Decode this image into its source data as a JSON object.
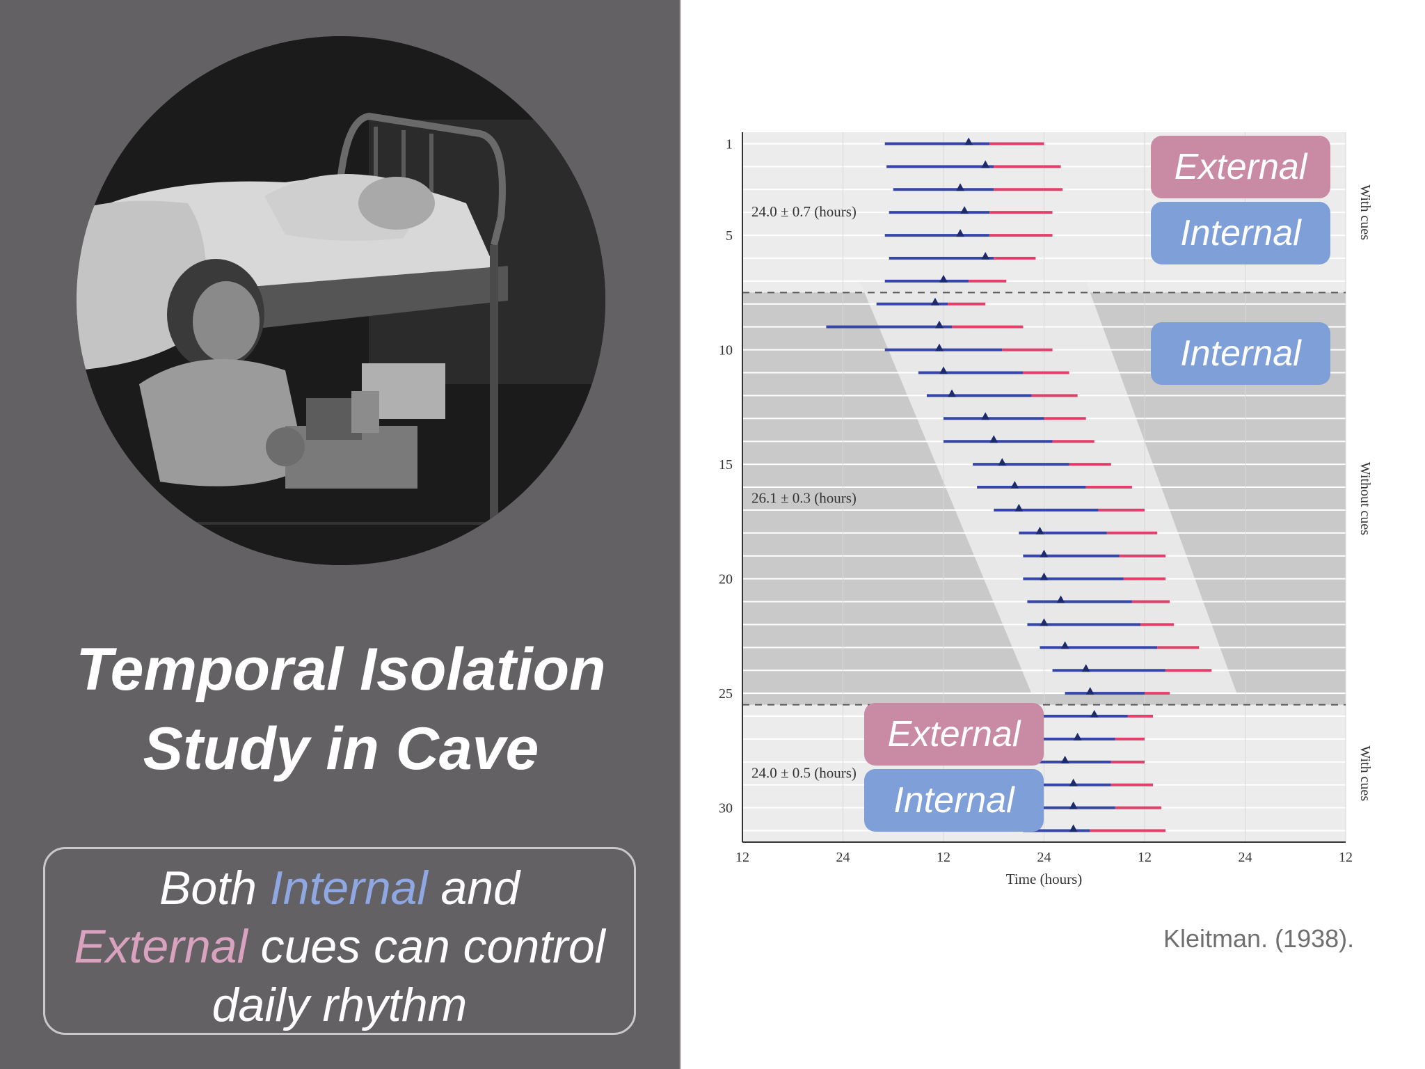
{
  "title": {
    "line1": "Temporal Isolation",
    "line2": "Study in Cave"
  },
  "caption": {
    "w1": "Both",
    "w2": "Internal",
    "w3": "and",
    "w4": "External",
    "w5": "cues can control",
    "w6": "daily rhythm"
  },
  "citation": "Kleitman. (1938).",
  "colors": {
    "internal": "#3546a8",
    "external": "#e0406a",
    "external_label": "#c98aa4",
    "internal_label": "#7f9fd9",
    "panel_bg": "#636164"
  },
  "labels": {
    "external_top": "External",
    "internal_top": "Internal",
    "internal_mid": "Internal",
    "external_bottom": "External",
    "internal_bottom": "Internal"
  },
  "chart_data": {
    "type": "raster",
    "xlabel": "Time (hours)",
    "x_ticks": [
      "12",
      "24",
      "12",
      "24",
      "12",
      "24",
      "12",
      "24"
    ],
    "x_range": [
      12,
      84
    ],
    "y_ticks": [
      1,
      5,
      10,
      15,
      20,
      25,
      30
    ],
    "y_range": [
      1,
      31
    ],
    "grid": true,
    "segments": [
      {
        "label": "With cues",
        "days": [
          1,
          7
        ],
        "period": "24.0 ± 0.7 (hours)"
      },
      {
        "label": "Without cues",
        "days": [
          8,
          25
        ],
        "period": "26.1 ± 0.3 (hours)"
      },
      {
        "label": "With cues",
        "days": [
          26,
          31
        ],
        "period": "24.0 ± 0.5 (hours)"
      }
    ],
    "series": [
      {
        "name": "Internal",
        "color": "#3546a8"
      },
      {
        "name": "External",
        "color": "#e0406a"
      }
    ],
    "days": [
      {
        "day": 1,
        "start": 29.0,
        "switch": 41.5,
        "end": 48.0,
        "marker": 39.0
      },
      {
        "day": 2,
        "start": 29.2,
        "switch": 42.0,
        "end": 50.0,
        "marker": 41.0
      },
      {
        "day": 3,
        "start": 30.0,
        "switch": 42.0,
        "end": 50.2,
        "marker": 38.0
      },
      {
        "day": 4,
        "start": 29.5,
        "switch": 41.5,
        "end": 49.0,
        "marker": 38.5
      },
      {
        "day": 5,
        "start": 29.0,
        "switch": 41.5,
        "end": 49.0,
        "marker": 38.0
      },
      {
        "day": 6,
        "start": 29.5,
        "switch": 42.0,
        "end": 47.0,
        "marker": 41.0
      },
      {
        "day": 7,
        "start": 29.0,
        "switch": 39.0,
        "end": 43.5,
        "marker": 36.0
      },
      {
        "day": 8,
        "start": 28.0,
        "switch": 36.5,
        "end": 41.0,
        "marker": 35.0
      },
      {
        "day": 9,
        "start": 22.0,
        "switch": 37.0,
        "end": 45.5,
        "marker": 35.5
      },
      {
        "day": 10,
        "start": 29.0,
        "switch": 43.0,
        "end": 49.0,
        "marker": 35.5
      },
      {
        "day": 11,
        "start": 33.0,
        "switch": 45.5,
        "end": 51.0,
        "marker": 36.0
      },
      {
        "day": 12,
        "start": 34.0,
        "switch": 46.5,
        "end": 52.0,
        "marker": 37.0
      },
      {
        "day": 13,
        "start": 36.0,
        "switch": 48.0,
        "end": 53.0,
        "marker": 41.0
      },
      {
        "day": 14,
        "start": 36.0,
        "switch": 49.0,
        "end": 54.0,
        "marker": 42.0
      },
      {
        "day": 15,
        "start": 39.5,
        "switch": 51.0,
        "end": 56.0,
        "marker": 43.0
      },
      {
        "day": 16,
        "start": 40.0,
        "switch": 53.0,
        "end": 58.5,
        "marker": 44.5
      },
      {
        "day": 17,
        "start": 42.0,
        "switch": 54.5,
        "end": 60.0,
        "marker": 45.0
      },
      {
        "day": 18,
        "start": 45.0,
        "switch": 55.5,
        "end": 61.5,
        "marker": 47.5
      },
      {
        "day": 19,
        "start": 45.5,
        "switch": 57.0,
        "end": 62.5,
        "marker": 48.0
      },
      {
        "day": 20,
        "start": 45.5,
        "switch": 57.5,
        "end": 62.5,
        "marker": 48.0
      },
      {
        "day": 21,
        "start": 46.0,
        "switch": 58.5,
        "end": 63.0,
        "marker": 50.0
      },
      {
        "day": 22,
        "start": 46.0,
        "switch": 59.5,
        "end": 63.5,
        "marker": 48.0
      },
      {
        "day": 23,
        "start": 47.5,
        "switch": 61.5,
        "end": 66.5,
        "marker": 50.5
      },
      {
        "day": 24,
        "start": 49.0,
        "switch": 62.5,
        "end": 68.0,
        "marker": 53.0
      },
      {
        "day": 25,
        "start": 50.5,
        "switch": 60.0,
        "end": 63.0,
        "marker": 53.5
      },
      {
        "day": 26,
        "start": 46.0,
        "switch": 58.0,
        "end": 61.0,
        "marker": 54.0
      },
      {
        "day": 27,
        "start": 46.0,
        "switch": 56.5,
        "end": 60.0,
        "marker": 52.0
      },
      {
        "day": 28,
        "start": 44.0,
        "switch": 56.0,
        "end": 60.0,
        "marker": 50.5
      },
      {
        "day": 29,
        "start": 44.5,
        "switch": 56.0,
        "end": 61.0,
        "marker": 51.5
      },
      {
        "day": 30,
        "start": 45.0,
        "switch": 56.5,
        "end": 62.0,
        "marker": 51.5
      },
      {
        "day": 31,
        "start": 45.5,
        "switch": 53.5,
        "end": 62.5,
        "marker": 51.5
      }
    ]
  }
}
